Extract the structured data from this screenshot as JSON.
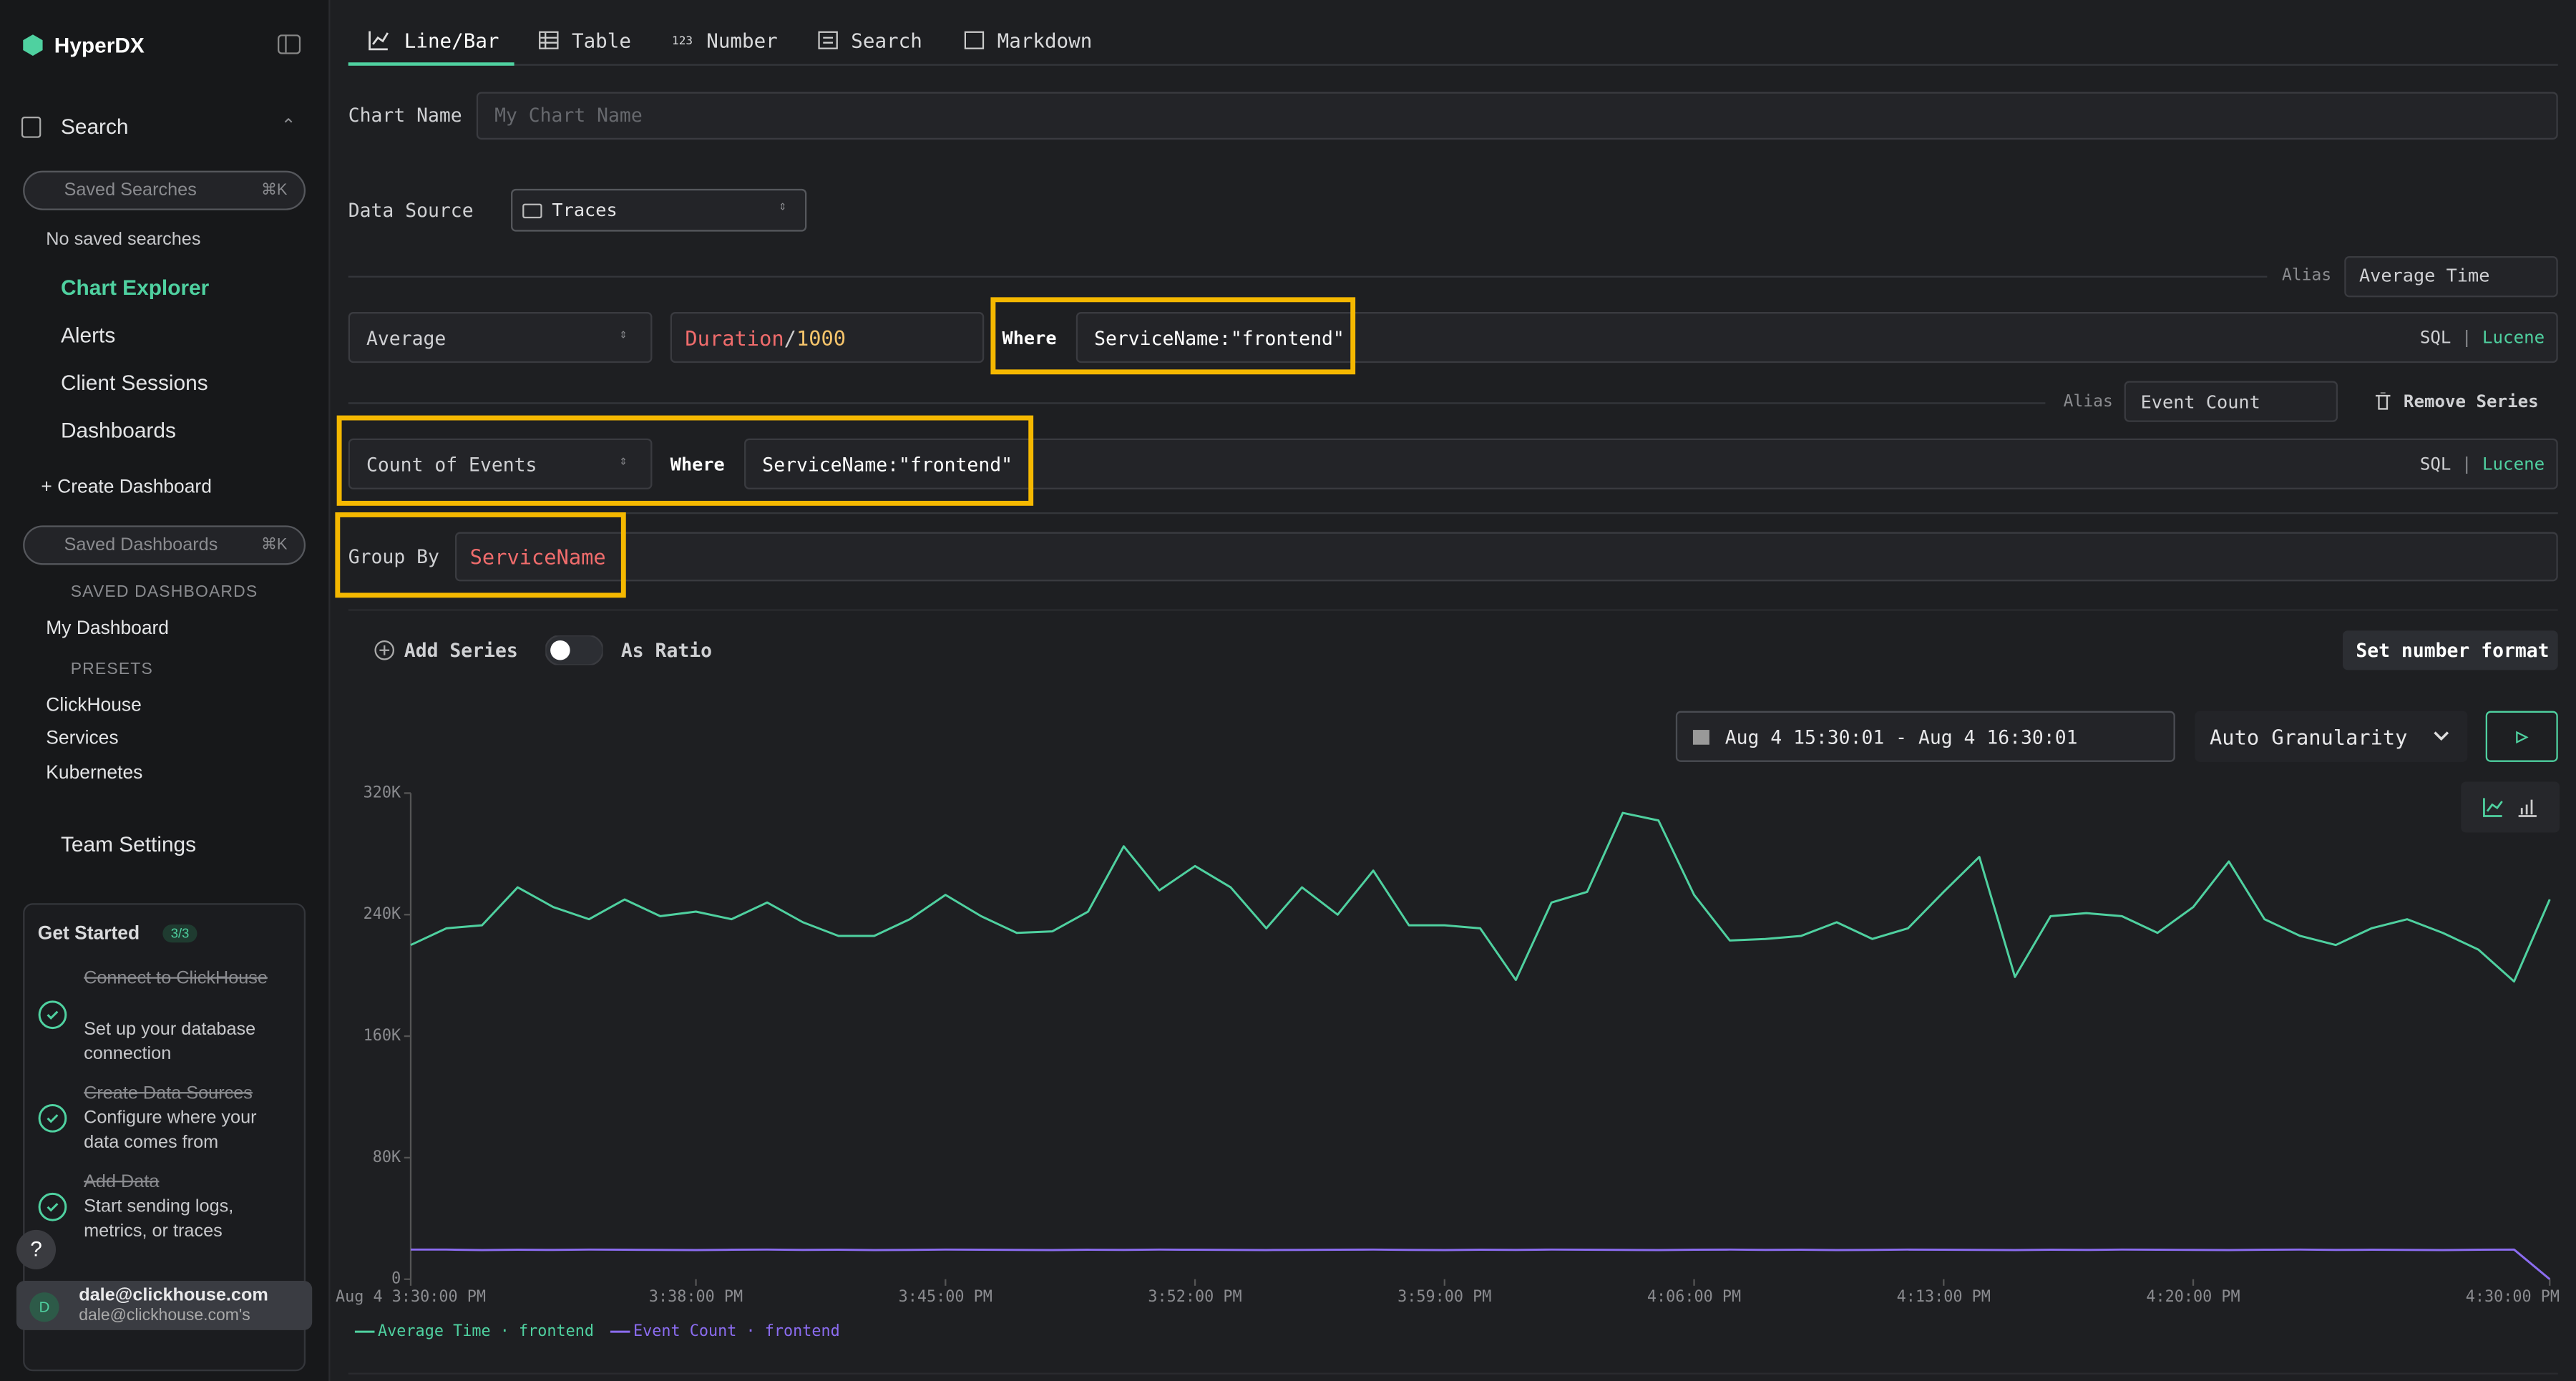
{
  "sidebar": {
    "brand": "HyperDX",
    "search": "Search",
    "saved_searches_placeholder": "Saved Searches",
    "saved_searches_shortcut": "⌘K",
    "no_saved_searches": "No saved searches",
    "chart_explorer": "Chart Explorer",
    "alerts": "Alerts",
    "client_sessions": "Client Sessions",
    "dashboards": "Dashboards",
    "create_dashboard": "+ Create Dashboard",
    "saved_dashboards_placeholder": "Saved Dashboards",
    "saved_dashboards_shortcut": "⌘K",
    "saved_dashboards_heading": "SAVED DASHBOARDS",
    "saved_dashboards": [
      "My Dashboard"
    ],
    "presets_heading": "PRESETS",
    "presets": [
      "ClickHouse",
      "Services",
      "Kubernetes"
    ],
    "team_settings": "Team Settings",
    "get_started": {
      "title": "Get Started",
      "progress": "3/3",
      "steps": [
        {
          "title": "Connect to ClickHouse",
          "description": "Set up your database connection"
        },
        {
          "title": "Create Data Sources",
          "description": "Configure where your data comes from"
        },
        {
          "title": "Add Data",
          "description": "Start sending logs, metrics, or traces"
        }
      ]
    },
    "help": "?",
    "user": {
      "initial": "D",
      "email": "dale@clickhouse.com",
      "team": "dale@clickhouse.com's"
    }
  },
  "tabs": {
    "icon_number": "123",
    "items": [
      "Line/Bar",
      "Table",
      "Number",
      "Search",
      "Markdown"
    ]
  },
  "form": {
    "chart_name_label": "Chart Name",
    "chart_name_placeholder": "My Chart Name",
    "data_source_label": "Data Source",
    "data_source": "Traces",
    "series": [
      {
        "alias_label": "Alias",
        "alias": "Average Time",
        "aggregation": "Average",
        "expression": [
          "Duration",
          "/",
          "1000"
        ],
        "where_label": "Where",
        "where": "ServiceName:\"frontend\"",
        "sql": "SQL",
        "separator": "|",
        "lucene": "Lucene"
      },
      {
        "alias_label": "Alias",
        "alias": "Event Count",
        "remove": "Remove Series",
        "aggregation": "Count of Events",
        "where_label": "Where",
        "where": "ServiceName:\"frontend\"",
        "sql": "SQL",
        "separator": "|",
        "lucene": "Lucene"
      }
    ],
    "group_by_label": "Group By",
    "group_by": "ServiceName",
    "add_series": "Add Series",
    "as_ratio": "As Ratio",
    "set_number_format": "Set number format",
    "date_range": "Aug 4 15:30:01 - Aug 4 16:30:01",
    "granularity": "Auto Granularity"
  },
  "chart_data": {
    "type": "line",
    "x": [
      "3:30:00 PM",
      "3:31:00 PM",
      "3:32:00 PM",
      "3:33:00 PM",
      "3:34:00 PM",
      "3:35:00 PM",
      "3:36:00 PM",
      "3:37:00 PM",
      "3:38:00 PM",
      "3:39:00 PM",
      "3:40:00 PM",
      "3:41:00 PM",
      "3:42:00 PM",
      "3:43:00 PM",
      "3:44:00 PM",
      "3:45:00 PM",
      "3:46:00 PM",
      "3:47:00 PM",
      "3:48:00 PM",
      "3:49:00 PM",
      "3:50:00 PM",
      "3:51:00 PM",
      "3:52:00 PM",
      "3:53:00 PM",
      "3:54:00 PM",
      "3:55:00 PM",
      "3:56:00 PM",
      "3:57:00 PM",
      "3:58:00 PM",
      "3:59:00 PM",
      "4:00:00 PM",
      "4:01:00 PM",
      "4:02:00 PM",
      "4:03:00 PM",
      "4:04:00 PM",
      "4:05:00 PM",
      "4:06:00 PM",
      "4:07:00 PM",
      "4:08:00 PM",
      "4:09:00 PM",
      "4:10:00 PM",
      "4:11:00 PM",
      "4:12:00 PM",
      "4:13:00 PM",
      "4:14:00 PM",
      "4:15:00 PM",
      "4:16:00 PM",
      "4:17:00 PM",
      "4:18:00 PM",
      "4:19:00 PM",
      "4:20:00 PM",
      "4:21:00 PM",
      "4:22:00 PM",
      "4:23:00 PM",
      "4:24:00 PM",
      "4:25:00 PM",
      "4:26:00 PM",
      "4:27:00 PM",
      "4:28:00 PM",
      "4:29:00 PM",
      "4:30:00 PM"
    ],
    "xticks": [
      {
        "value": "3:30:00 PM",
        "label": "Aug 4 3:30:00 PM"
      },
      "3:38:00 PM",
      "3:45:00 PM",
      "3:52:00 PM",
      "3:59:00 PM",
      "4:06:00 PM",
      "4:13:00 PM",
      "4:20:00 PM",
      "4:30:00 PM"
    ],
    "ylim": [
      0,
      320000
    ],
    "yticks": [
      0,
      {
        "value": 80000,
        "label": "80K"
      },
      {
        "value": 160000,
        "label": "160K"
      },
      {
        "value": 240000,
        "label": "240K"
      },
      {
        "value": 320000,
        "label": "320K"
      }
    ],
    "grid": false,
    "series": [
      {
        "name": "Average Time · frontend",
        "color": "#4fd1a0",
        "values": [
          220000,
          231000,
          233000,
          258000,
          245000,
          237000,
          250000,
          239000,
          242000,
          237000,
          248000,
          235000,
          226000,
          226000,
          237000,
          253000,
          239000,
          228000,
          229000,
          242000,
          285000,
          256000,
          272000,
          258000,
          231000,
          258000,
          240000,
          269000,
          233000,
          233000,
          231000,
          197000,
          248000,
          255000,
          307000,
          302000,
          253000,
          223000,
          224000,
          226000,
          235000,
          224000,
          231000,
          255000,
          278000,
          199000,
          239000,
          241000,
          239000,
          228000,
          245000,
          275000,
          237000,
          226000,
          220000,
          231000,
          237000,
          228000,
          217000,
          196000,
          250000
        ]
      },
      {
        "name": "Event Count · frontend",
        "color": "#8b6cf0",
        "values": [
          19500,
          19500,
          19200,
          19400,
          19300,
          19500,
          19400,
          19300,
          19200,
          19400,
          19500,
          19300,
          19400,
          19200,
          19300,
          19500,
          19400,
          19300,
          19200,
          19400,
          19300,
          19500,
          19400,
          19300,
          19200,
          19300,
          19400,
          19500,
          19300,
          19200,
          19400,
          19300,
          19500,
          19400,
          19300,
          19200,
          19400,
          19500,
          19300,
          19400,
          19200,
          19300,
          19500,
          19400,
          19300,
          19200,
          19400,
          19300,
          19500,
          19400,
          19300,
          19200,
          19400,
          19500,
          19300,
          19400,
          19300,
          19200,
          19400,
          19500,
          0
        ]
      }
    ]
  }
}
